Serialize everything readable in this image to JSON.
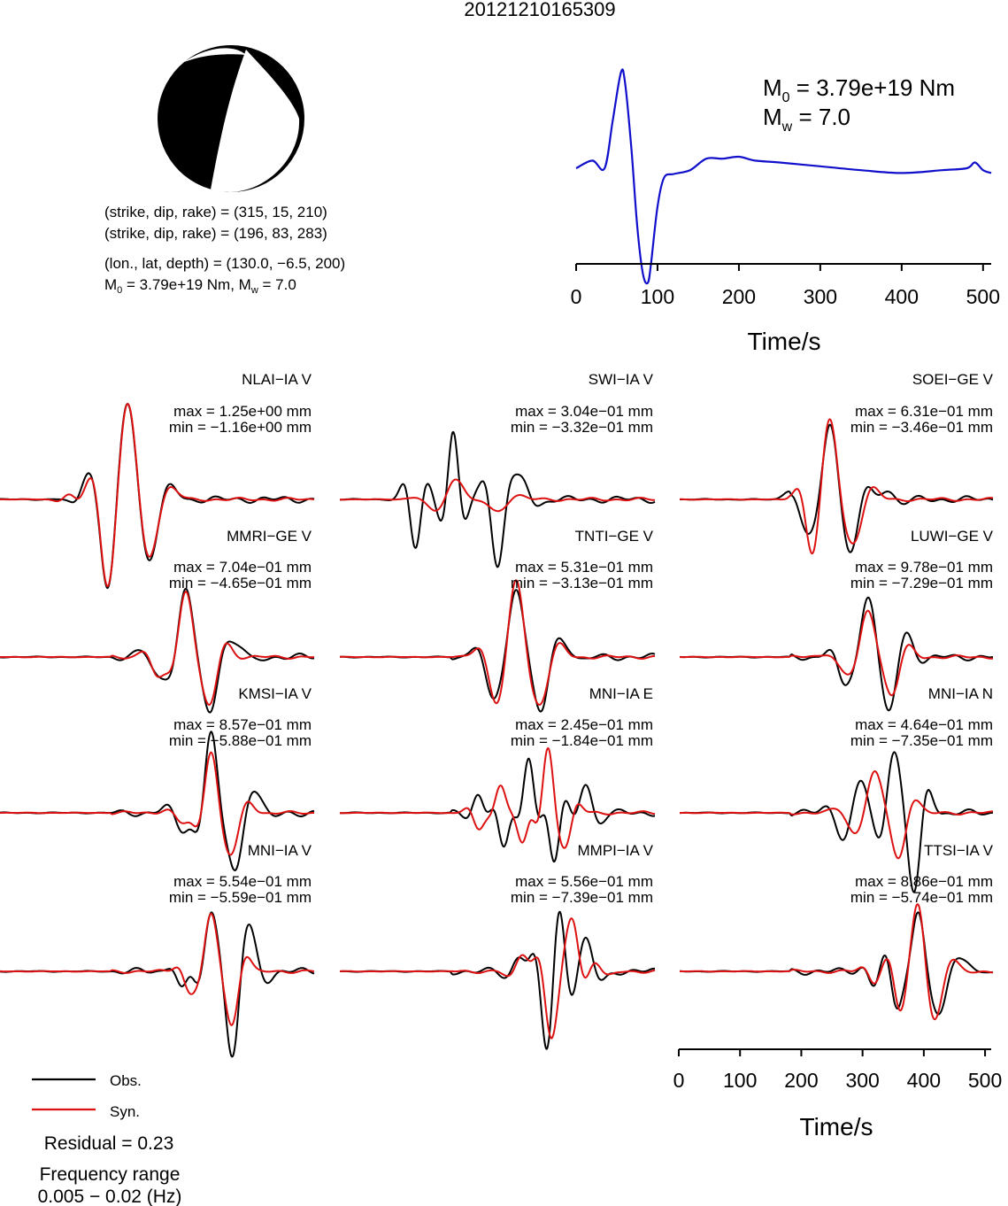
{
  "title": "20121210165309",
  "mechanism": {
    "plane1_label": "(strike, dip, rake) = (315, 15, 210)",
    "plane2_label": "(strike, dip, rake) = (196, 83, 283)",
    "location_label": "(lon., lat, depth) = (130.0, −6.5, 200)",
    "moment_line": {
      "m0": "M",
      "m0_sub": "0",
      "m0_rest": " = 3.79e+19 Nm, M",
      "mw_sub": "w",
      "mw_rest": " = 7.0"
    }
  },
  "stf": {
    "m0_symbol": "M",
    "m0_sub": "0",
    "m0_value": " = 3.79e+19 Nm",
    "mw_symbol": "M",
    "mw_sub": "w",
    "mw_value": " = 7.0",
    "xlabel": "Time/s",
    "xticks": [
      "0",
      "100",
      "200",
      "300",
      "400",
      "500"
    ],
    "color": "#1010cc"
  },
  "waveform_axis": {
    "xlabel": "Time/s",
    "xticks": [
      "0",
      "100",
      "200",
      "300",
      "400",
      "500"
    ]
  },
  "legend": {
    "obs_label": "Obs.",
    "syn_label": "Syn.",
    "obs_color": "#000000",
    "syn_color": "#dd1111"
  },
  "residual_label": "Residual = 0.23",
  "freq_label1": "Frequency range",
  "freq_label2": "0.005 − 0.02 (Hz)",
  "stations": [
    {
      "name": "NLAI−IA V",
      "max": "max = 1.25e+00 mm",
      "min": "min = −1.16e+00 mm"
    },
    {
      "name": "SWI−IA V",
      "max": "max = 3.04e−01 mm",
      "min": "min = −3.32e−01 mm"
    },
    {
      "name": "SOEI−GE V",
      "max": "max = 6.31e−01 mm",
      "min": "min = −3.46e−01 mm"
    },
    {
      "name": "MMRI−GE V",
      "max": "max = 7.04e−01 mm",
      "min": "min = −4.65e−01 mm"
    },
    {
      "name": "TNTI−GE V",
      "max": "max = 5.31e−01 mm",
      "min": "min = −3.13e−01 mm"
    },
    {
      "name": "LUWI−GE V",
      "max": "max = 9.78e−01 mm",
      "min": "min = −7.29e−01 mm"
    },
    {
      "name": "KMSI−IA V",
      "max": "max = 8.57e−01 mm",
      "min": "min = −5.88e−01 mm"
    },
    {
      "name": "MNI−IA E",
      "max": "max = 2.45e−01 mm",
      "min": "min = −1.84e−01 mm"
    },
    {
      "name": "MNI−IA N",
      "max": "max = 4.64e−01 mm",
      "min": "min = −7.35e−01 mm"
    },
    {
      "name": "MNI−IA V",
      "max": "max = 5.54e−01 mm",
      "min": "min = −5.59e−01 mm"
    },
    {
      "name": "MMPI−IA V",
      "max": "max = 5.56e−01 mm",
      "min": "min = −7.39e−01 mm"
    },
    {
      "name": "TTSI−IA V",
      "max": "max = 8.86e−01 mm",
      "min": "min = −5.74e−01 mm"
    }
  ],
  "chart_data": {
    "type": "line",
    "title": "20121210165309",
    "xlabel": "Time/s",
    "xlim": [
      0,
      510
    ],
    "source_time_function": {
      "x": [
        0,
        20,
        35,
        45,
        55,
        60,
        68,
        75,
        82,
        88,
        92,
        100,
        108,
        120,
        140,
        160,
        180,
        200,
        220,
        250,
        300,
        350,
        400,
        450,
        480,
        490,
        500,
        510
      ],
      "y": [
        0.0,
        0.08,
        0.0,
        0.5,
        1.0,
        0.9,
        0.2,
        -0.6,
        -1.1,
        -1.2,
        -1.0,
        -0.4,
        -0.1,
        -0.06,
        -0.02,
        0.1,
        0.1,
        0.12,
        0.08,
        0.06,
        0.02,
        -0.02,
        -0.05,
        -0.02,
        0.0,
        0.06,
        -0.02,
        -0.05
      ]
    },
    "series": [
      {
        "name": "Obs.",
        "color": "#000000"
      },
      {
        "name": "Syn.",
        "color": "#dd1111"
      }
    ]
  }
}
